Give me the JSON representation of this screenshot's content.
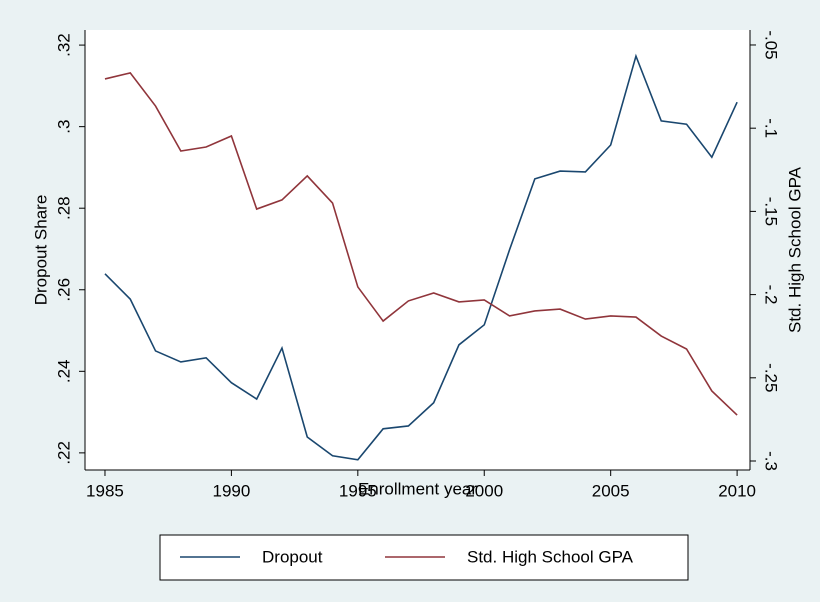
{
  "chart_data": {
    "type": "line",
    "x_label": "Enrollment year",
    "y_label": "Dropout Share",
    "y2_label": "Std. High School GPA",
    "x": [
      1985,
      1986,
      1987,
      1988,
      1989,
      1990,
      1991,
      1992,
      1993,
      1994,
      1995,
      1996,
      1997,
      1998,
      1999,
      2000,
      2001,
      2002,
      2003,
      2004,
      2005,
      2006,
      2007,
      2008,
      2009,
      2010
    ],
    "series": [
      {
        "name": "Dropout",
        "color": "#1a476f",
        "axis": "y",
        "values": [
          0.2639,
          0.2577,
          0.245,
          0.2423,
          0.2433,
          0.2372,
          0.2332,
          0.2457,
          0.2239,
          0.2193,
          0.2183,
          0.2259,
          0.2266,
          0.2323,
          0.2465,
          0.2514,
          0.2698,
          0.2872,
          0.2891,
          0.2889,
          0.2955,
          0.3173,
          0.3014,
          0.3006,
          0.2925,
          0.306
        ]
      },
      {
        "name": "Std. High School GPA",
        "color": "#90353b",
        "axis": "y2",
        "values": [
          -0.0704,
          -0.0668,
          -0.0867,
          -0.1137,
          -0.1113,
          -0.1047,
          -0.1486,
          -0.1431,
          -0.1287,
          -0.145,
          -0.1954,
          -0.2159,
          -0.2038,
          -0.199,
          -0.2044,
          -0.2032,
          -0.2128,
          -0.2098,
          -0.2087,
          -0.2147,
          -0.2128,
          -0.2135,
          -0.2249,
          -0.2327,
          -0.2579,
          -0.2724
        ]
      }
    ],
    "xlim": [
      1984.21,
      2010.51
    ],
    "xticks": [
      1985,
      1990,
      1995,
      2000,
      2005,
      2010
    ],
    "ylim": [
      0.2158,
      0.3237
    ],
    "yticks": [
      {
        "value": 0.22,
        "label": ".22"
      },
      {
        "value": 0.24,
        "label": ".24"
      },
      {
        "value": 0.26,
        "label": ".26"
      },
      {
        "value": 0.28,
        "label": ".28"
      },
      {
        "value": 0.3,
        "label": ".3"
      },
      {
        "value": 0.32,
        "label": ".32"
      }
    ],
    "y2lim": [
      -0.3054,
      -0.041
    ],
    "y2ticks": [
      {
        "value": -0.3,
        "label": "-.3"
      },
      {
        "value": -0.25,
        "label": "-.25"
      },
      {
        "value": -0.2,
        "label": "-.2"
      },
      {
        "value": -0.15,
        "label": "-.15"
      },
      {
        "value": -0.1,
        "label": "-.1"
      },
      {
        "value": -0.05,
        "label": "-.05"
      }
    ],
    "legend": "bottom"
  }
}
